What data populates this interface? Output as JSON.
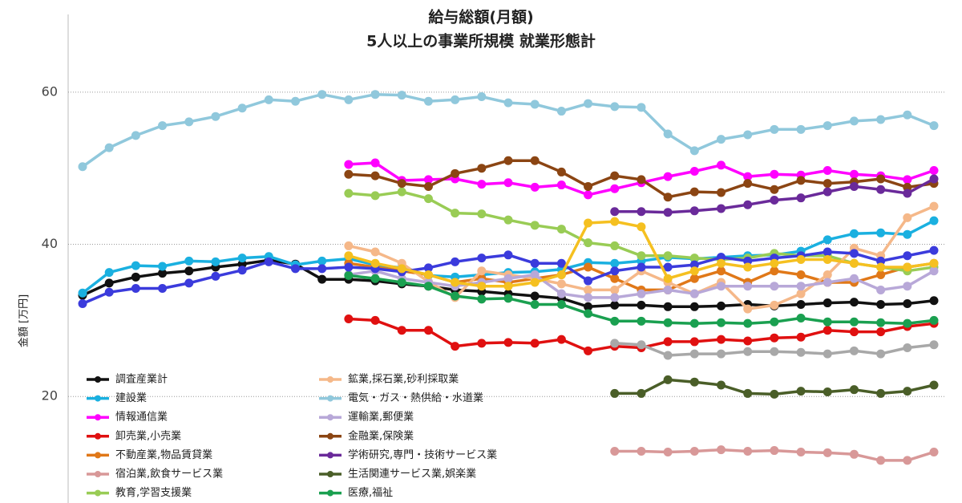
{
  "chart_data": {
    "type": "line",
    "title": "給与総額(月額)",
    "subtitle": "5人以上の事業所規模 就業形態計",
    "y_label": "金額 [万円]",
    "categories": [
      null,
      null,
      null,
      null,
      null,
      null,
      null,
      null,
      null,
      null,
      null,
      null,
      null,
      null,
      null,
      null,
      null,
      null,
      null,
      null,
      null,
      null,
      null,
      null,
      null,
      null,
      null,
      null,
      null,
      null,
      null,
      null,
      null
    ],
    "ylim": [
      6,
      70
    ],
    "yticks": [
      20,
      40,
      60
    ],
    "grid": true,
    "legend": "bottom-left",
    "series": [
      {
        "name": "調査産業計",
        "color": "#111111",
        "values": [
          33.3,
          34.9,
          35.7,
          36.2,
          36.5,
          37.0,
          37.4,
          37.9,
          37.4,
          35.4,
          35.4,
          35.2,
          34.8,
          34.5,
          34.0,
          33.8,
          33.5,
          33.2,
          32.9,
          31.8,
          32.0,
          32.0,
          31.8,
          31.8,
          31.9,
          32.1,
          31.9,
          32.1,
          32.3,
          32.4,
          32.1,
          32.2,
          32.6
        ]
      },
      {
        "name": "建設業",
        "color": "#1ab0e0",
        "values": [
          33.6,
          36.3,
          37.2,
          37.1,
          37.8,
          37.7,
          38.2,
          38.4,
          37.3,
          37.8,
          38.1,
          37.3,
          36.9,
          35.9,
          35.7,
          36.0,
          36.3,
          36.4,
          36.7,
          37.6,
          37.5,
          37.8,
          38.3,
          38.1,
          38.3,
          38.5,
          38.6,
          39.1,
          40.6,
          41.4,
          41.5,
          41.3,
          43.1
        ]
      },
      {
        "name": "情報通信業",
        "color": "#ff00ff",
        "values": [
          null,
          null,
          null,
          null,
          null,
          null,
          null,
          null,
          null,
          null,
          50.5,
          50.7,
          48.4,
          48.5,
          48.6,
          47.9,
          48.1,
          47.5,
          47.8,
          46.5,
          47.3,
          48.1,
          48.9,
          49.6,
          50.4,
          48.9,
          49.2,
          49.1,
          49.7,
          49.2,
          49.0,
          48.5,
          49.7
        ]
      },
      {
        "name": "卸売業,小売業",
        "color": "#e01010",
        "values": [
          null,
          null,
          null,
          null,
          null,
          null,
          null,
          null,
          null,
          null,
          30.2,
          30.0,
          28.7,
          28.7,
          26.6,
          27.0,
          27.1,
          27.0,
          27.5,
          26.0,
          26.6,
          26.4,
          27.2,
          27.2,
          27.5,
          27.3,
          27.7,
          27.8,
          28.7,
          28.5,
          28.5,
          29.2,
          29.6
        ]
      },
      {
        "name": "不動産業,物品賃貸業",
        "color": "#e07818",
        "values": [
          null,
          null,
          null,
          null,
          null,
          null,
          null,
          null,
          null,
          null,
          37.5,
          37.0,
          36.5,
          36.0,
          35.0,
          35.5,
          35.0,
          35.5,
          36.0,
          37.0,
          35.5,
          34.0,
          34.0,
          35.5,
          36.5,
          35.0,
          36.5,
          36.0,
          35.0,
          35.0,
          36.0,
          37.0,
          37.5
        ]
      },
      {
        "name": "宿泊業,飲食サービス業",
        "color": "#d89898",
        "values": [
          null,
          null,
          null,
          null,
          null,
          null,
          null,
          null,
          null,
          null,
          null,
          null,
          null,
          null,
          null,
          null,
          null,
          null,
          null,
          null,
          12.8,
          12.8,
          12.7,
          12.8,
          13.0,
          12.8,
          12.9,
          12.7,
          12.6,
          12.4,
          11.6,
          11.6,
          12.7
        ]
      },
      {
        "name": "教育,学習支援業",
        "color": "#99cc55",
        "values": [
          null,
          null,
          null,
          null,
          null,
          null,
          null,
          null,
          null,
          null,
          46.7,
          46.4,
          46.9,
          46.0,
          44.1,
          44.0,
          43.2,
          42.5,
          42.0,
          40.2,
          39.8,
          38.5,
          38.5,
          38.2,
          38.0,
          38.2,
          38.8,
          38.5,
          38.5,
          37.5,
          37.0,
          36.5,
          37.0
        ]
      },
      {
        "name": "鉱業,採石業,砂利採取業",
        "color": "#f5b889",
        "values": [
          null,
          null,
          null,
          null,
          null,
          null,
          null,
          null,
          null,
          null,
          39.8,
          39.0,
          37.5,
          35.1,
          33.0,
          36.5,
          36.0,
          35.5,
          34.8,
          34.0,
          34.0,
          36.5,
          35.0,
          33.5,
          35.0,
          31.5,
          32.0,
          33.5,
          36.0,
          39.5,
          38.5,
          43.5,
          45.0
        ]
      },
      {
        "name": "電気・ガス・熱供給・水道業",
        "color": "#90c8dc",
        "values": [
          50.2,
          52.7,
          54.3,
          55.6,
          56.1,
          56.8,
          57.9,
          59.0,
          58.8,
          59.7,
          59.0,
          59.7,
          59.6,
          58.8,
          59.0,
          59.4,
          58.6,
          58.4,
          57.5,
          58.5,
          58.1,
          58.0,
          54.5,
          52.3,
          53.8,
          54.4,
          55.1,
          55.1,
          55.6,
          56.2,
          56.4,
          57.0,
          55.6
        ]
      },
      {
        "name": "運輸業,郵便業",
        "color": "#b8a8d8",
        "values": [
          null,
          null,
          null,
          null,
          null,
          null,
          null,
          null,
          null,
          null,
          36.0,
          36.5,
          35.5,
          35.0,
          34.5,
          35.0,
          35.5,
          36.0,
          33.5,
          33.0,
          33.0,
          33.5,
          34.0,
          33.5,
          34.5,
          34.5,
          34.5,
          34.5,
          35.0,
          35.5,
          34.0,
          34.5,
          36.5
        ]
      },
      {
        "name": "金融業,保険業",
        "color": "#8b4513",
        "values": [
          null,
          null,
          null,
          null,
          null,
          null,
          null,
          null,
          null,
          null,
          49.2,
          49.0,
          48.0,
          47.6,
          49.3,
          50.0,
          51.0,
          51.0,
          49.5,
          47.6,
          49.0,
          48.5,
          46.2,
          46.9,
          46.8,
          48.0,
          47.2,
          48.4,
          48.0,
          48.2,
          48.6,
          47.5,
          48.0
        ]
      },
      {
        "name": "学術研究,専門・技術サービス業",
        "color": "#6a2a9a",
        "values": [
          null,
          null,
          null,
          null,
          null,
          null,
          null,
          null,
          null,
          null,
          null,
          null,
          null,
          null,
          null,
          null,
          null,
          null,
          null,
          null,
          44.3,
          44.3,
          44.2,
          44.4,
          44.7,
          45.2,
          45.8,
          46.1,
          46.9,
          47.6,
          47.2,
          46.7,
          48.6
        ]
      },
      {
        "name": "生活関連サービス業,娯楽業",
        "color": "#4a5e28",
        "values": [
          null,
          null,
          null,
          null,
          null,
          null,
          null,
          null,
          null,
          null,
          null,
          null,
          null,
          null,
          null,
          null,
          null,
          null,
          null,
          null,
          20.4,
          20.4,
          22.2,
          21.9,
          21.5,
          20.4,
          20.3,
          20.7,
          20.6,
          20.9,
          20.4,
          20.7,
          21.5
        ]
      },
      {
        "name": "医療,福祉",
        "color": "#1aa050",
        "values": [
          null,
          null,
          null,
          null,
          null,
          null,
          null,
          null,
          null,
          null,
          35.9,
          35.5,
          35.0,
          34.5,
          33.2,
          32.8,
          32.9,
          32.1,
          32.1,
          30.9,
          29.9,
          29.9,
          29.7,
          29.6,
          29.7,
          29.6,
          29.8,
          30.3,
          29.8,
          29.8,
          29.7,
          29.6,
          30.0
        ]
      },
      {
        "color": "#3b3bdc",
        "values": [
          32.2,
          33.7,
          34.2,
          34.2,
          34.9,
          35.8,
          36.6,
          37.7,
          36.8,
          36.8,
          37.0,
          36.8,
          36.4,
          36.9,
          37.7,
          38.2,
          38.6,
          37.5,
          37.5,
          35.2,
          36.5,
          37.0,
          37.0,
          37.3,
          38.3,
          37.8,
          38.2,
          38.5,
          39.0,
          38.8,
          37.8,
          38.5,
          39.2
        ]
      },
      {
        "color": "#a8a8a8",
        "values": [
          null,
          null,
          null,
          null,
          null,
          null,
          null,
          null,
          null,
          null,
          null,
          null,
          null,
          null,
          null,
          null,
          null,
          null,
          null,
          null,
          27.0,
          26.8,
          25.4,
          25.6,
          25.6,
          25.9,
          25.9,
          25.8,
          25.6,
          26.0,
          25.6,
          26.4,
          26.8
        ]
      },
      {
        "color": "#f5c020",
        "values": [
          null,
          null,
          null,
          null,
          null,
          null,
          null,
          null,
          null,
          null,
          38.5,
          37.5,
          36.8,
          36.0,
          35.0,
          34.5,
          34.5,
          35.0,
          36.0,
          42.8,
          43.0,
          42.3,
          35.5,
          36.5,
          37.5,
          37.0,
          37.5,
          38.0,
          38.0,
          37.5,
          37.0,
          37.0,
          37.5
        ]
      }
    ]
  }
}
